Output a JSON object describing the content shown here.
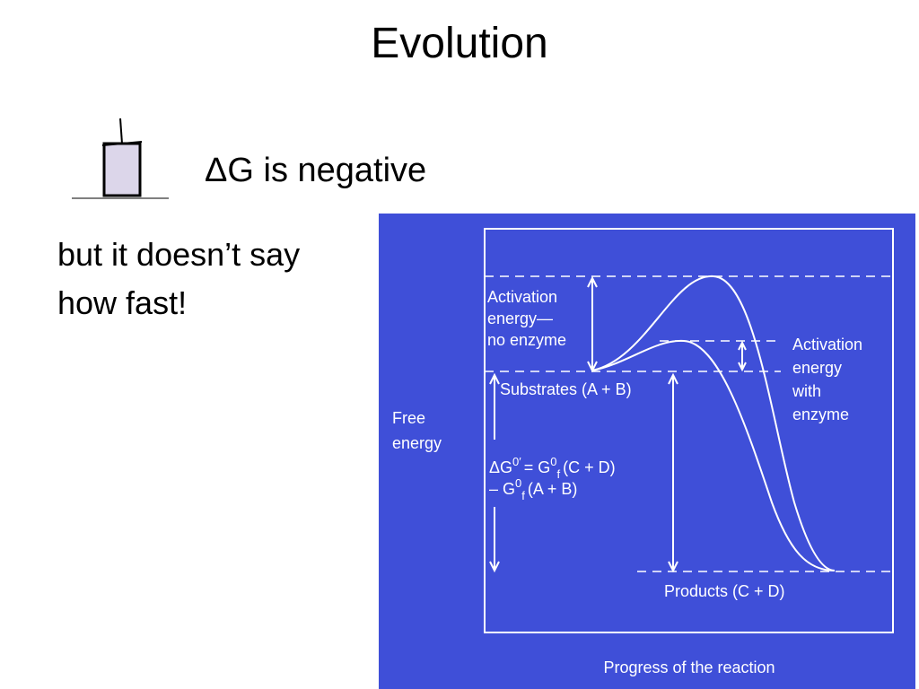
{
  "slide": {
    "title": "Evolution",
    "bullet": "ΔG is negative",
    "body_lines": [
      "but it doesn’t say",
      "how fast!"
    ],
    "diagram": {
      "activation_no_enzyme": [
        "Activation",
        "energy—",
        "no enzyme"
      ],
      "activation_with_enzyme": [
        "Activation",
        "energy",
        "with",
        "enzyme"
      ],
      "substrates": "Substrates (A + B)",
      "y_axis_label": [
        "Free",
        "energy"
      ],
      "delta_g_line1": [
        "ΔG",
        "0′",
        "= G",
        "0",
        "f",
        "(C + D)"
      ],
      "delta_g_line2": [
        "– G",
        "0",
        "f",
        "(A + B)"
      ],
      "products": "Products (C + D)",
      "x_axis_label": "Progress of the reaction"
    }
  }
}
